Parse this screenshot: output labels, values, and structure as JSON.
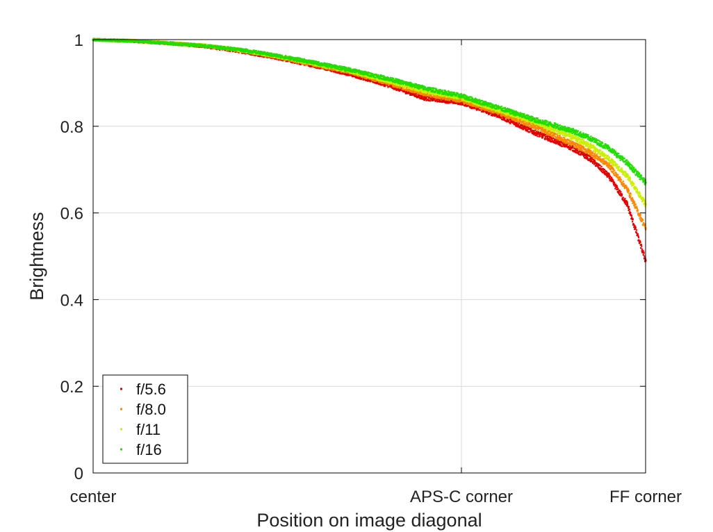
{
  "chart_data": {
    "type": "scatter",
    "title": "",
    "xlabel": "Position on image diagonal",
    "ylabel": "Brightness",
    "xlim": [
      0,
      1.5
    ],
    "ylim": [
      0,
      1
    ],
    "x_ticks": [
      {
        "value": 0,
        "label": "center"
      },
      {
        "value": 1,
        "label": "APS-C corner"
      },
      {
        "value": 1.5,
        "label": "FF corner"
      }
    ],
    "y_ticks": [
      {
        "value": 0,
        "label": "0"
      },
      {
        "value": 0.2,
        "label": "0.2"
      },
      {
        "value": 0.4,
        "label": "0.4"
      },
      {
        "value": 0.6,
        "label": "0.6"
      },
      {
        "value": 0.8,
        "label": "0.8"
      },
      {
        "value": 1,
        "label": "1"
      }
    ],
    "grid": true,
    "legend_position": "bottom-left",
    "series": [
      {
        "name": "f/5.6",
        "color": "#dd0000",
        "x": [
          0,
          0.1,
          0.2,
          0.3,
          0.4,
          0.5,
          0.6,
          0.7,
          0.8,
          0.9,
          1.0,
          1.1,
          1.2,
          1.3,
          1.35,
          1.4,
          1.45,
          1.5
        ],
        "y": [
          1.0,
          0.997,
          0.992,
          0.985,
          0.973,
          0.958,
          0.94,
          0.92,
          0.895,
          0.865,
          0.855,
          0.825,
          0.785,
          0.75,
          0.725,
          0.685,
          0.62,
          0.49
        ]
      },
      {
        "name": "f/8.0",
        "color": "#ff8800",
        "x": [
          0,
          0.1,
          0.2,
          0.3,
          0.4,
          0.5,
          0.6,
          0.7,
          0.8,
          0.9,
          1.0,
          1.1,
          1.2,
          1.3,
          1.35,
          1.4,
          1.45,
          1.5
        ],
        "y": [
          1.0,
          0.998,
          0.993,
          0.986,
          0.975,
          0.96,
          0.942,
          0.925,
          0.9,
          0.875,
          0.86,
          0.832,
          0.8,
          0.76,
          0.74,
          0.71,
          0.655,
          0.565
        ]
      },
      {
        "name": "f/11",
        "color": "#ccee00",
        "x": [
          0,
          0.1,
          0.2,
          0.3,
          0.4,
          0.5,
          0.6,
          0.7,
          0.8,
          0.9,
          1.0,
          1.1,
          1.2,
          1.3,
          1.35,
          1.4,
          1.45,
          1.5
        ],
        "y": [
          1.0,
          0.998,
          0.993,
          0.987,
          0.976,
          0.962,
          0.945,
          0.927,
          0.905,
          0.882,
          0.866,
          0.838,
          0.81,
          0.775,
          0.755,
          0.725,
          0.685,
          0.62
        ]
      },
      {
        "name": "f/16",
        "color": "#22dd00",
        "x": [
          0,
          0.1,
          0.2,
          0.3,
          0.4,
          0.5,
          0.6,
          0.7,
          0.8,
          0.9,
          1.0,
          1.1,
          1.2,
          1.3,
          1.35,
          1.4,
          1.45,
          1.5
        ],
        "y": [
          1.0,
          0.997,
          0.992,
          0.986,
          0.977,
          0.963,
          0.947,
          0.93,
          0.91,
          0.888,
          0.87,
          0.843,
          0.815,
          0.79,
          0.772,
          0.75,
          0.715,
          0.67
        ]
      }
    ]
  }
}
